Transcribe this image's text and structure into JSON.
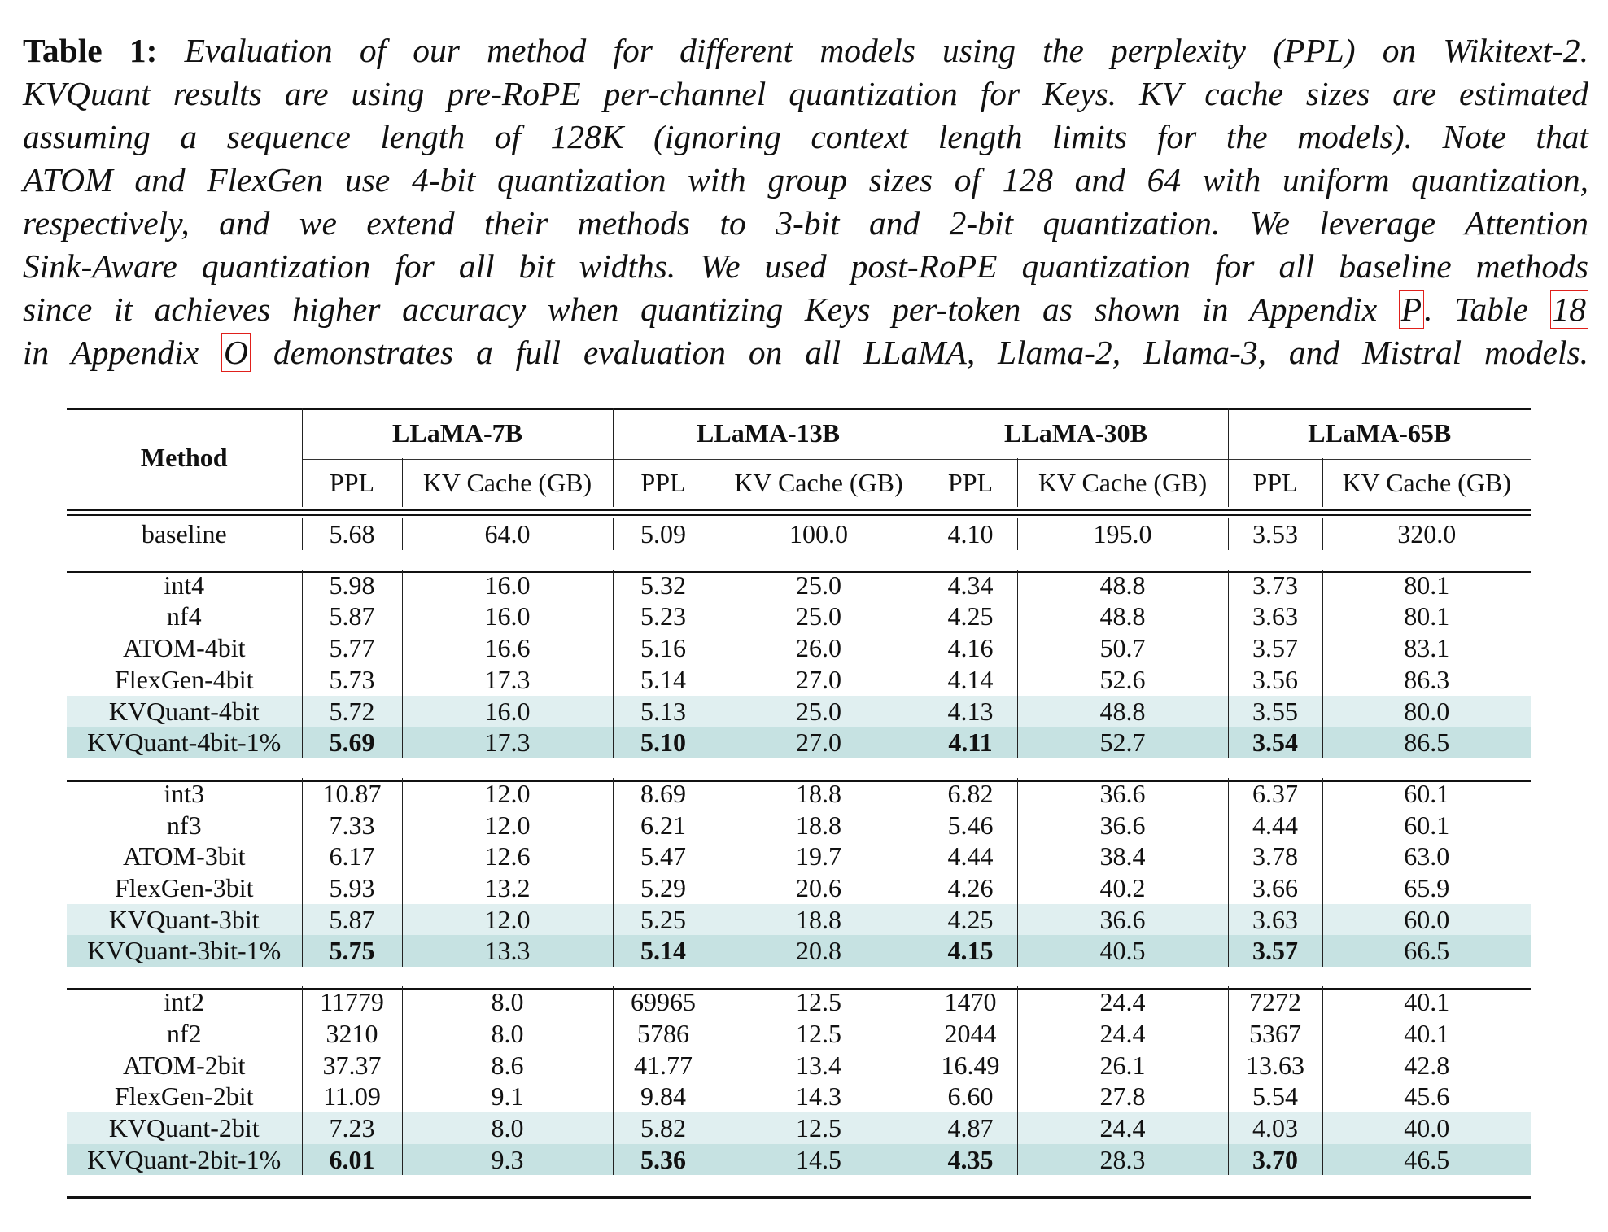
{
  "caption": {
    "label": "Table 1:",
    "lines": [
      " Evaluation of our method for different models using the perplexity (PPL) on Wikitext-2.",
      "KVQuant results are using pre-RoPE per-channel quantization for Keys. KV cache sizes are estimated",
      "assuming a sequence length of 128K (ignoring context length limits for the models).  Note that",
      "ATOM and FlexGen use 4-bit quantization with group sizes of 128 and 64 with uniform quantization,",
      "respectively, and we extend their methods to 3-bit and 2-bit quantization.  We leverage Attention",
      "Sink-Aware quantization for all bit widths. We used post-RoPE quantization for all baseline methods"
    ],
    "line7_text": "since it achieves higher accuracy when quantizing Keys per-token as shown in Appendix ",
    "line7_ref1": "P",
    "line7_mid": ". Table ",
    "line7_ref2": "18",
    "line8_pre": "in Appendix ",
    "line8_ref": "O",
    "line8_post": " demonstrates a full evaluation on all LLaMA, Llama-2, Llama-3, and Mistral models."
  },
  "colors": {
    "light_highlight": "#e0eff0",
    "dark_highlight": "#c6e2e2",
    "ref_box": "#e0201b"
  },
  "table": {
    "method_header": "Method",
    "models": [
      "LLaMA-7B",
      "LLaMA-13B",
      "LLaMA-30B",
      "LLaMA-65B"
    ],
    "sub_headers": [
      "PPL",
      "KV Cache (GB)"
    ],
    "groups": [
      [
        {
          "method": "baseline",
          "cells": [
            "5.68",
            "64.0",
            "5.09",
            "100.0",
            "4.10",
            "195.0",
            "3.53",
            "320.0"
          ]
        }
      ],
      [
        {
          "method": "int4",
          "cells": [
            "5.98",
            "16.0",
            "5.32",
            "25.0",
            "4.34",
            "48.8",
            "3.73",
            "80.1"
          ]
        },
        {
          "method": "nf4",
          "cells": [
            "5.87",
            "16.0",
            "5.23",
            "25.0",
            "4.25",
            "48.8",
            "3.63",
            "80.1"
          ]
        },
        {
          "method": "ATOM-4bit",
          "cells": [
            "5.77",
            "16.6",
            "5.16",
            "26.0",
            "4.16",
            "50.7",
            "3.57",
            "83.1"
          ]
        },
        {
          "method": "FlexGen-4bit",
          "cells": [
            "5.73",
            "17.3",
            "5.14",
            "27.0",
            "4.14",
            "52.6",
            "3.56",
            "86.3"
          ]
        },
        {
          "method": "KVQuant-4bit",
          "highlight": "light",
          "cells": [
            "5.72",
            "16.0",
            "5.13",
            "25.0",
            "4.13",
            "48.8",
            "3.55",
            "80.0"
          ]
        },
        {
          "method": "KVQuant-4bit-1%",
          "highlight": "dark",
          "bold_ppl": true,
          "cells": [
            "5.69",
            "17.3",
            "5.10",
            "27.0",
            "4.11",
            "52.7",
            "3.54",
            "86.5"
          ]
        }
      ],
      [
        {
          "method": "int3",
          "cells": [
            "10.87",
            "12.0",
            "8.69",
            "18.8",
            "6.82",
            "36.6",
            "6.37",
            "60.1"
          ]
        },
        {
          "method": "nf3",
          "cells": [
            "7.33",
            "12.0",
            "6.21",
            "18.8",
            "5.46",
            "36.6",
            "4.44",
            "60.1"
          ]
        },
        {
          "method": "ATOM-3bit",
          "cells": [
            "6.17",
            "12.6",
            "5.47",
            "19.7",
            "4.44",
            "38.4",
            "3.78",
            "63.0"
          ]
        },
        {
          "method": "FlexGen-3bit",
          "cells": [
            "5.93",
            "13.2",
            "5.29",
            "20.6",
            "4.26",
            "40.2",
            "3.66",
            "65.9"
          ]
        },
        {
          "method": "KVQuant-3bit",
          "highlight": "light",
          "cells": [
            "5.87",
            "12.0",
            "5.25",
            "18.8",
            "4.25",
            "36.6",
            "3.63",
            "60.0"
          ]
        },
        {
          "method": "KVQuant-3bit-1%",
          "highlight": "dark",
          "bold_ppl": true,
          "cells": [
            "5.75",
            "13.3",
            "5.14",
            "20.8",
            "4.15",
            "40.5",
            "3.57",
            "66.5"
          ]
        }
      ],
      [
        {
          "method": "int2",
          "cells": [
            "11779",
            "8.0",
            "69965",
            "12.5",
            "1470",
            "24.4",
            "7272",
            "40.1"
          ]
        },
        {
          "method": "nf2",
          "cells": [
            "3210",
            "8.0",
            "5786",
            "12.5",
            "2044",
            "24.4",
            "5367",
            "40.1"
          ]
        },
        {
          "method": "ATOM-2bit",
          "cells": [
            "37.37",
            "8.6",
            "41.77",
            "13.4",
            "16.49",
            "26.1",
            "13.63",
            "42.8"
          ]
        },
        {
          "method": "FlexGen-2bit",
          "cells": [
            "11.09",
            "9.1",
            "9.84",
            "14.3",
            "6.60",
            "27.8",
            "5.54",
            "45.6"
          ]
        },
        {
          "method": "KVQuant-2bit",
          "highlight": "light",
          "cells": [
            "7.23",
            "8.0",
            "5.82",
            "12.5",
            "4.87",
            "24.4",
            "4.03",
            "40.0"
          ]
        },
        {
          "method": "KVQuant-2bit-1%",
          "highlight": "dark",
          "bold_ppl": true,
          "cells": [
            "6.01",
            "9.3",
            "5.36",
            "14.5",
            "4.35",
            "28.3",
            "3.70",
            "46.5"
          ]
        }
      ]
    ]
  }
}
